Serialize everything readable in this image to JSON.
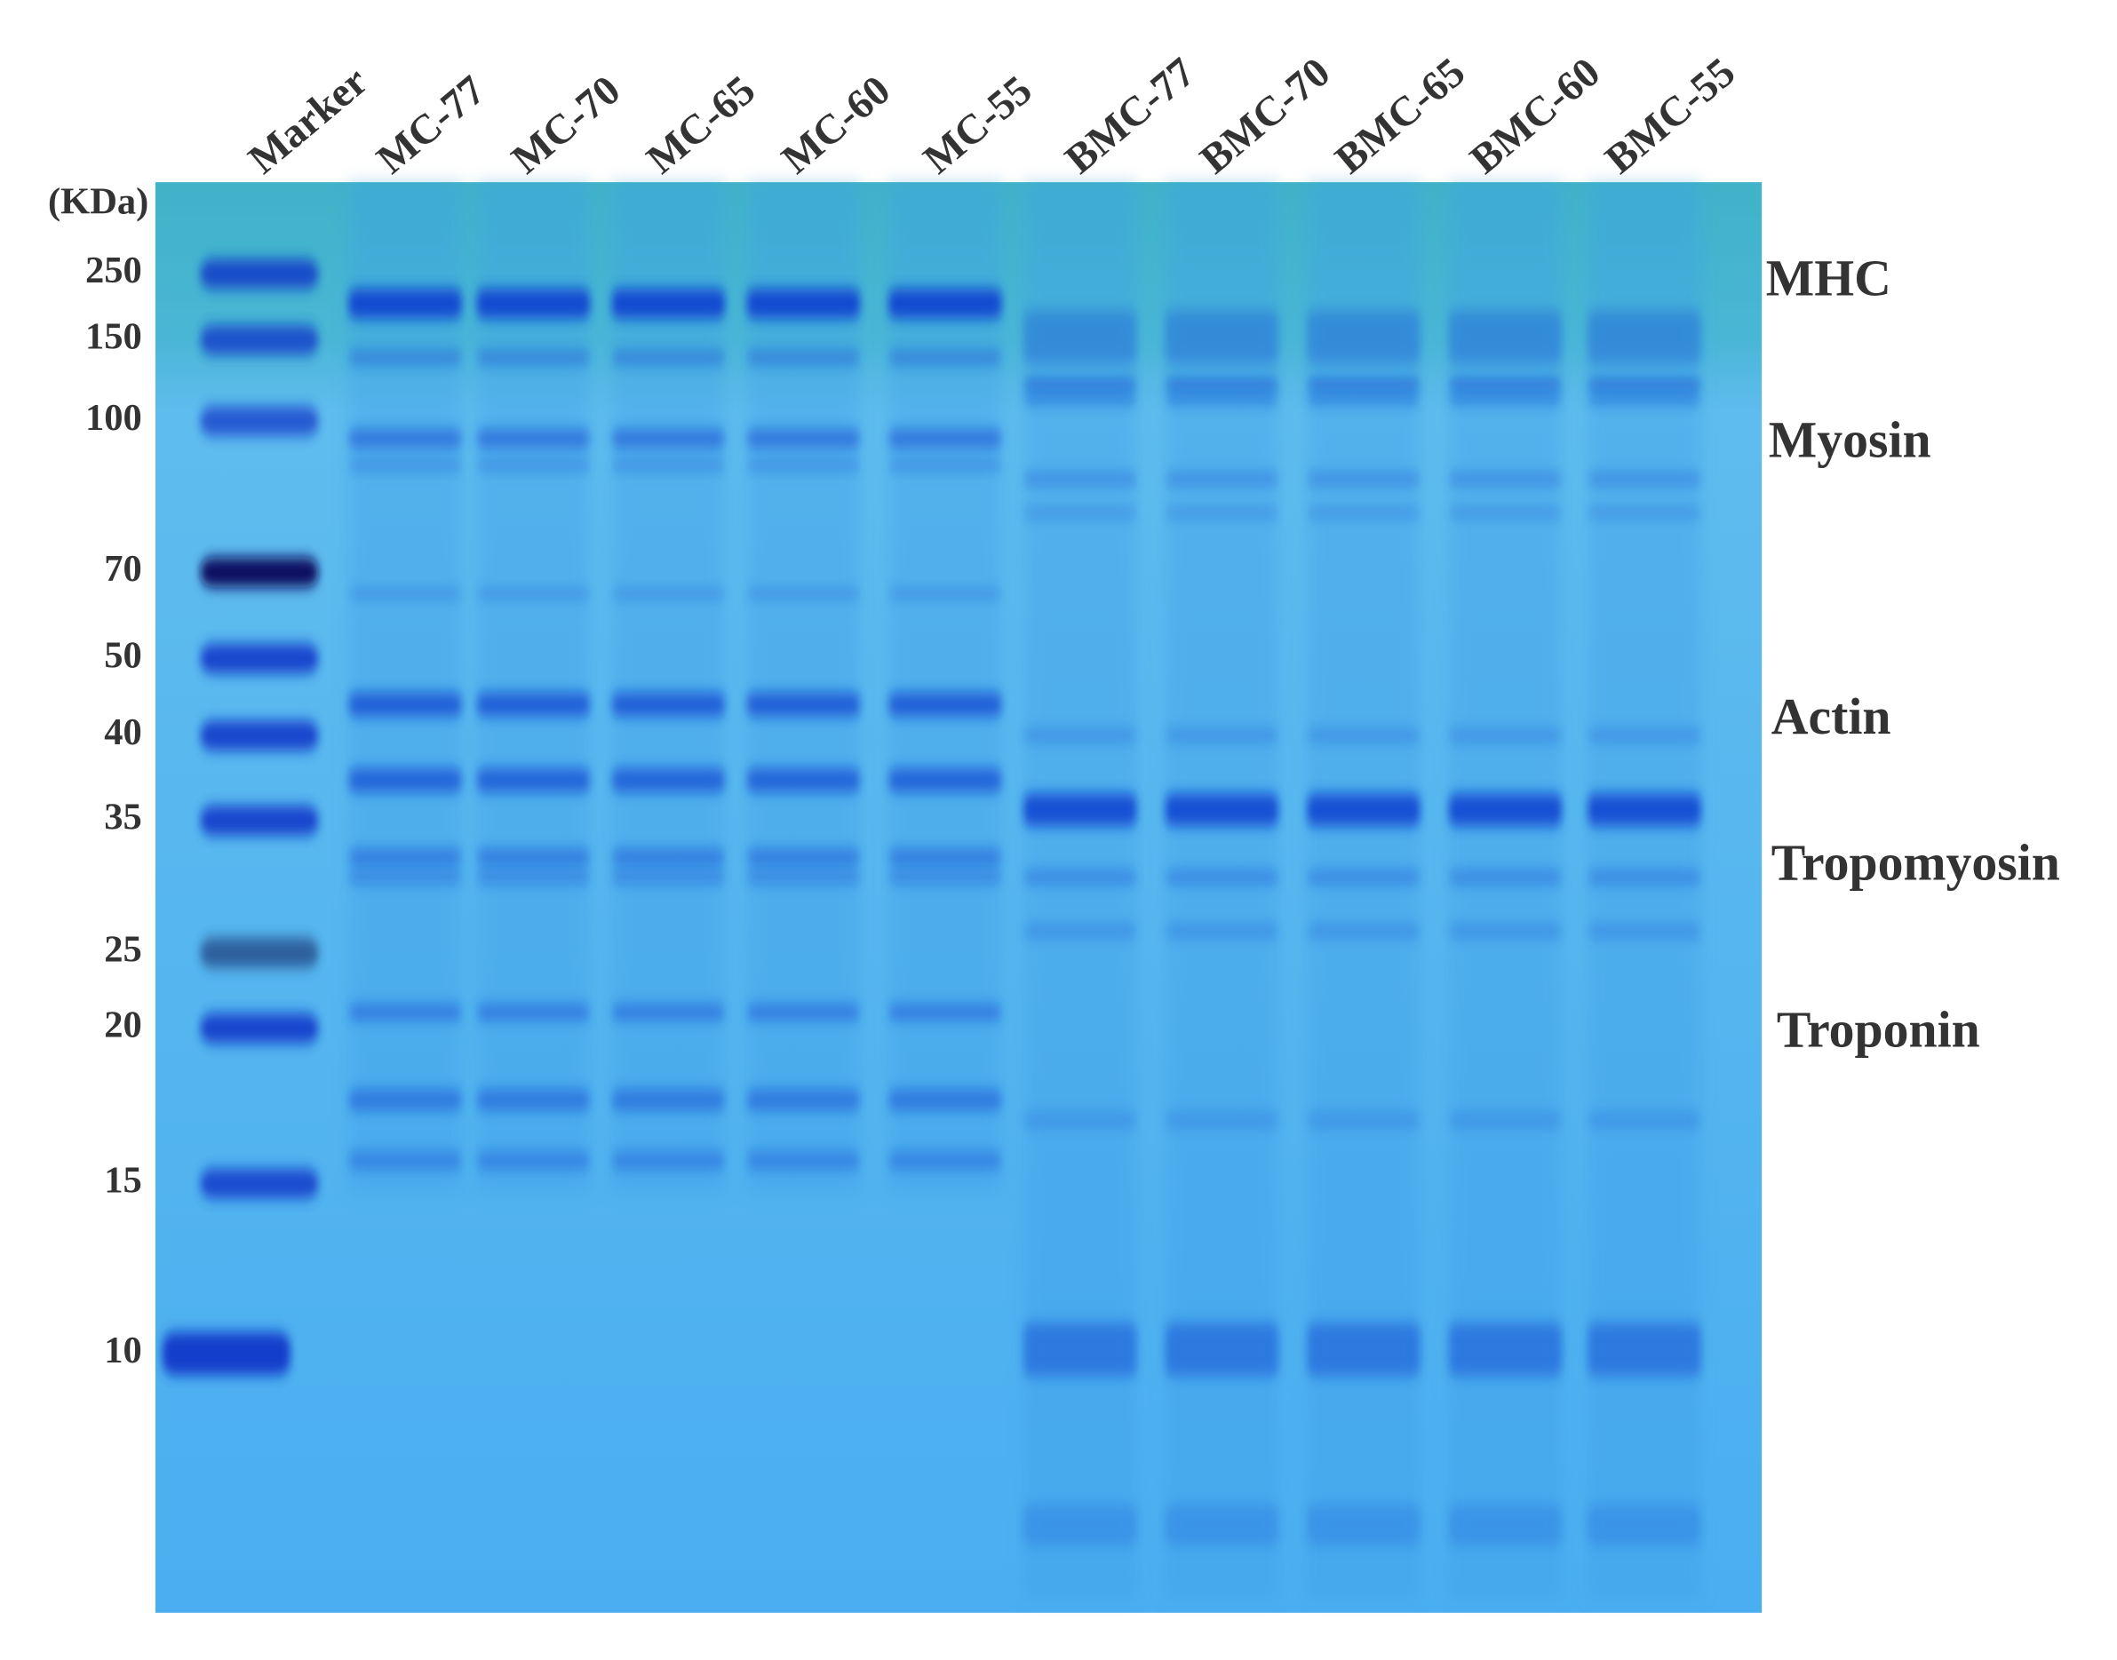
{
  "unit": "(KDa)",
  "lane_labels": [
    "Marker",
    "MC-77",
    "MC-70",
    "MC-65",
    "MC-60",
    "MC-55",
    "BMC-77",
    "BMC-70",
    "BMC-65",
    "BMC-60",
    "BMC-55"
  ],
  "mw_labels": [
    250,
    150,
    100,
    70,
    50,
    40,
    35,
    25,
    20,
    15,
    10
  ],
  "protein_labels": [
    "MHC",
    "Myosin",
    "Actin",
    "Tropomyosin",
    "Troponin"
  ]
}
